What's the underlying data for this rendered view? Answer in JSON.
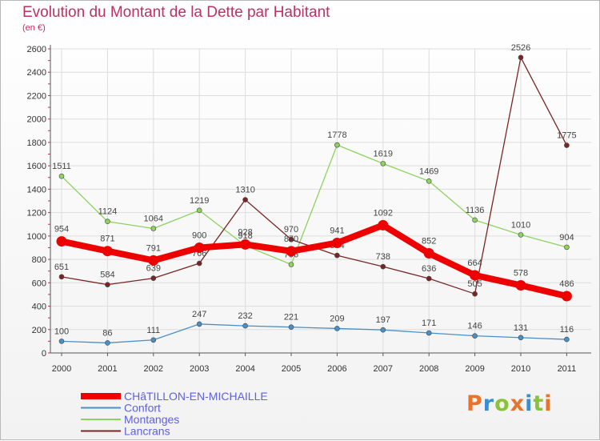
{
  "chart_data": {
    "type": "line",
    "title": "Evolution du Montant de la Dette par Habitant",
    "subtitle": "(en €)",
    "x": [
      "2000",
      "2001",
      "2002",
      "2003",
      "2004",
      "2005",
      "2006",
      "2007",
      "2008",
      "2009",
      "2010",
      "2011"
    ],
    "ylim": [
      0,
      2600
    ],
    "yticks": [
      0,
      200,
      400,
      600,
      800,
      1000,
      1200,
      1400,
      1600,
      1800,
      2000,
      2200,
      2400,
      2600
    ],
    "grid": true,
    "legend_position": "bottom-left",
    "series": [
      {
        "name": "Confort",
        "color": "#4a90c8",
        "values": [
          100,
          86,
          111,
          247,
          232,
          221,
          209,
          197,
          171,
          146,
          131,
          116
        ]
      },
      {
        "name": "Montanges",
        "color": "#8dd35f",
        "values": [
          1511,
          1124,
          1064,
          1219,
          918,
          756,
          1778,
          1619,
          1469,
          1136,
          1010,
          904
        ]
      },
      {
        "name": "Lancrans",
        "color": "#7a2525",
        "values": [
          651,
          584,
          639,
          766,
          1310,
          970,
          834,
          738,
          636,
          505,
          2526,
          1775
        ]
      },
      {
        "name": "CHâTILLON-EN-MICHAILLE",
        "color": "#ee0000",
        "values": [
          954,
          871,
          791,
          900,
          928,
          870,
          941,
          1092,
          852,
          664,
          578,
          486
        ]
      }
    ]
  },
  "labels": {
    "Confort": [
      "100",
      "86",
      "111",
      "247",
      "232",
      "221",
      "209",
      "197",
      "171",
      "146",
      "131",
      "116"
    ],
    "Montanges": [
      "1511",
      "1124",
      "1064",
      "1219",
      "918",
      "756",
      "1778",
      "1619",
      "1469",
      "1136",
      "1010",
      "904"
    ],
    "Lancrans": [
      "651",
      "584",
      "639",
      "766",
      "1310",
      "970",
      "834",
      "738",
      "636",
      "505",
      "2526",
      "1775"
    ],
    "CHâTILLON-EN-MICHAILLE": [
      "954",
      "871",
      "791",
      "900",
      "928",
      "870",
      "941",
      "1092",
      "852",
      "664",
      "578",
      "486"
    ]
  },
  "legend": [
    "CHâTILLON-EN-MICHAILLE",
    "Confort",
    "Montanges",
    "Lancrans"
  ],
  "logo": {
    "text": "Proxiti",
    "colors": [
      "#e8732a",
      "#3a8fd0",
      "#8ac33a",
      "#e8732a",
      "#3a8fd0",
      "#8ac33a",
      "#e8732a"
    ]
  }
}
